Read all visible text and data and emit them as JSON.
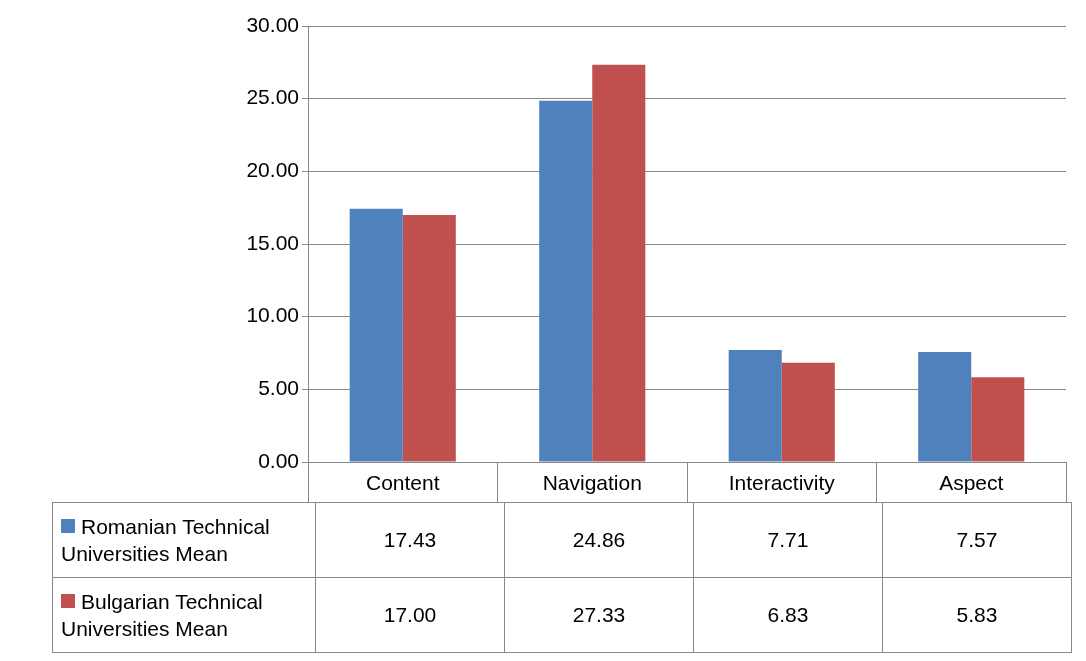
{
  "chart_data": {
    "type": "bar",
    "categories": [
      "Content",
      "Navigation",
      "Interactivity",
      "Aspect"
    ],
    "series": [
      {
        "name": "Romanian Technical Universities Mean",
        "color": "#4f81bd",
        "values": [
          17.43,
          24.86,
          7.71,
          7.57
        ],
        "value_labels": [
          "17.43",
          "24.86",
          "7.71",
          "7.57"
        ]
      },
      {
        "name": "Bulgarian Technical Universities Mean",
        "color": "#c0504d",
        "values": [
          17.0,
          27.33,
          6.83,
          5.83
        ],
        "value_labels": [
          "17.00",
          "27.33",
          "6.83",
          "5.83"
        ]
      }
    ],
    "ylim": [
      0,
      30
    ],
    "yticks": [
      {
        "value": 0,
        "label": "0.00"
      },
      {
        "value": 5,
        "label": "5.00"
      },
      {
        "value": 10,
        "label": "10.00"
      },
      {
        "value": 15,
        "label": "15.00"
      },
      {
        "value": 20,
        "label": "20.00"
      },
      {
        "value": 25,
        "label": "25.00"
      },
      {
        "value": 30,
        "label": "30.00"
      }
    ],
    "grid": "y",
    "legend": "bottom"
  }
}
